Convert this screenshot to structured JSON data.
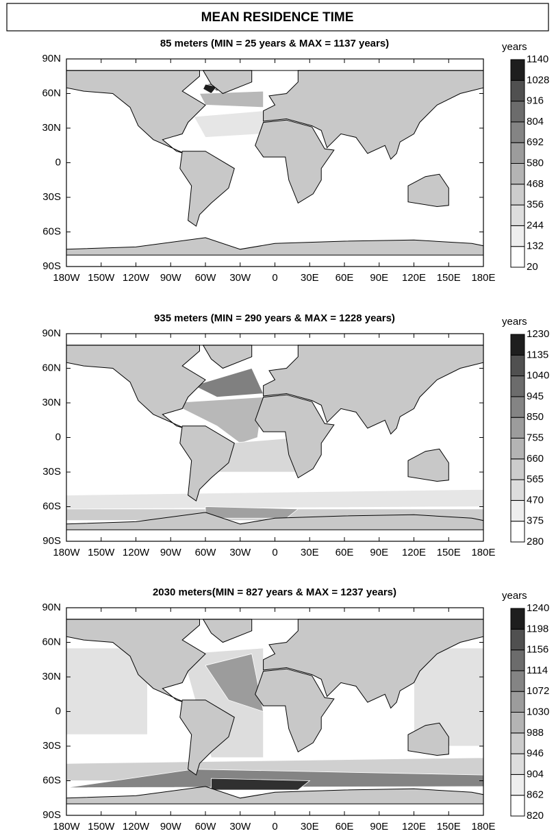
{
  "title": "MEAN RESIDENCE TIME",
  "chart_data": [
    {
      "type": "contour",
      "title": "85 meters  (MIN = 25 years & MAX = 1137 years)",
      "xlim": [
        -180,
        180
      ],
      "ylim": [
        -90,
        90
      ],
      "xticks": [
        {
          "value": -180,
          "label": "180W"
        },
        {
          "value": -150,
          "label": "150W"
        },
        {
          "value": -120,
          "label": "120W"
        },
        {
          "value": -90,
          "label": "90W"
        },
        {
          "value": -60,
          "label": "60W"
        },
        {
          "value": -30,
          "label": "30W"
        },
        0,
        {
          "value": 30,
          "label": "30E"
        },
        {
          "value": 60,
          "label": "60E"
        },
        {
          "value": 90,
          "label": "90E"
        },
        {
          "value": 120,
          "label": "120E"
        },
        {
          "value": 150,
          "label": "150E"
        },
        {
          "value": 180,
          "label": "180E"
        }
      ],
      "yticks": [
        {
          "value": 90,
          "label": "90N"
        },
        {
          "value": 60,
          "label": "60N"
        },
        {
          "value": 30,
          "label": "30N"
        },
        0,
        {
          "value": -30,
          "label": "30S"
        },
        {
          "value": -60,
          "label": "60S"
        },
        {
          "value": -90,
          "label": "90S"
        }
      ],
      "colorbar_label": "years",
      "levels": [
        20,
        132,
        244,
        356,
        468,
        580,
        692,
        804,
        916,
        1028,
        1140
      ],
      "colors": [
        "#ffffff",
        "#eeeeee",
        "#dddddd",
        "#cccccc",
        "#b4b4b4",
        "#9c9c9c",
        "#848484",
        "#6c6c6c",
        "#505050",
        "#1e1e1e"
      ]
    },
    {
      "type": "contour",
      "title": "935 meters (MIN = 290 years & MAX = 1228 years)",
      "xlim": [
        -180,
        180
      ],
      "ylim": [
        -90,
        90
      ],
      "xticks": [
        {
          "value": -180,
          "label": "180W"
        },
        {
          "value": -150,
          "label": "150W"
        },
        {
          "value": -120,
          "label": "120W"
        },
        {
          "value": -90,
          "label": "90W"
        },
        {
          "value": -60,
          "label": "60W"
        },
        {
          "value": -30,
          "label": "30W"
        },
        0,
        {
          "value": 30,
          "label": "30E"
        },
        {
          "value": 60,
          "label": "60E"
        },
        {
          "value": 90,
          "label": "90E"
        },
        {
          "value": 120,
          "label": "120E"
        },
        {
          "value": 150,
          "label": "150E"
        },
        {
          "value": 180,
          "label": "180E"
        }
      ],
      "yticks": [
        {
          "value": 90,
          "label": "90N"
        },
        {
          "value": 60,
          "label": "60N"
        },
        {
          "value": 30,
          "label": "30N"
        },
        0,
        {
          "value": -30,
          "label": "30S"
        },
        {
          "value": -60,
          "label": "60S"
        },
        {
          "value": -90,
          "label": "90S"
        }
      ],
      "colorbar_label": "years",
      "levels": [
        280,
        375,
        470,
        565,
        660,
        755,
        850,
        945,
        1040,
        1135,
        1230
      ],
      "colors": [
        "#ffffff",
        "#eeeeee",
        "#dddddd",
        "#cccccc",
        "#b4b4b4",
        "#9c9c9c",
        "#848484",
        "#6c6c6c",
        "#505050",
        "#1e1e1e"
      ]
    },
    {
      "type": "contour",
      "title": "2030 meters(MIN = 827 years & MAX = 1237 years)",
      "xlim": [
        -180,
        180
      ],
      "ylim": [
        -90,
        90
      ],
      "xticks": [
        {
          "value": -180,
          "label": "180W"
        },
        {
          "value": -150,
          "label": "150W"
        },
        {
          "value": -120,
          "label": "120W"
        },
        {
          "value": -90,
          "label": "90W"
        },
        {
          "value": -60,
          "label": "60W"
        },
        {
          "value": -30,
          "label": "30W"
        },
        0,
        {
          "value": 30,
          "label": "30E"
        },
        {
          "value": 60,
          "label": "60E"
        },
        {
          "value": 90,
          "label": "90E"
        },
        {
          "value": 120,
          "label": "120E"
        },
        {
          "value": 150,
          "label": "150E"
        },
        {
          "value": 180,
          "label": "180E"
        }
      ],
      "yticks": [
        {
          "value": 90,
          "label": "90N"
        },
        {
          "value": 60,
          "label": "60N"
        },
        {
          "value": 30,
          "label": "30N"
        },
        0,
        {
          "value": -30,
          "label": "30S"
        },
        {
          "value": -60,
          "label": "60S"
        },
        {
          "value": -90,
          "label": "90S"
        }
      ],
      "colorbar_label": "years",
      "levels": [
        820,
        862,
        904,
        946,
        988,
        1030,
        1072,
        1114,
        1156,
        1198,
        1240
      ],
      "colors": [
        "#ffffff",
        "#eeeeee",
        "#dddddd",
        "#cccccc",
        "#b4b4b4",
        "#9c9c9c",
        "#848484",
        "#6c6c6c",
        "#505050",
        "#1e1e1e"
      ]
    }
  ]
}
